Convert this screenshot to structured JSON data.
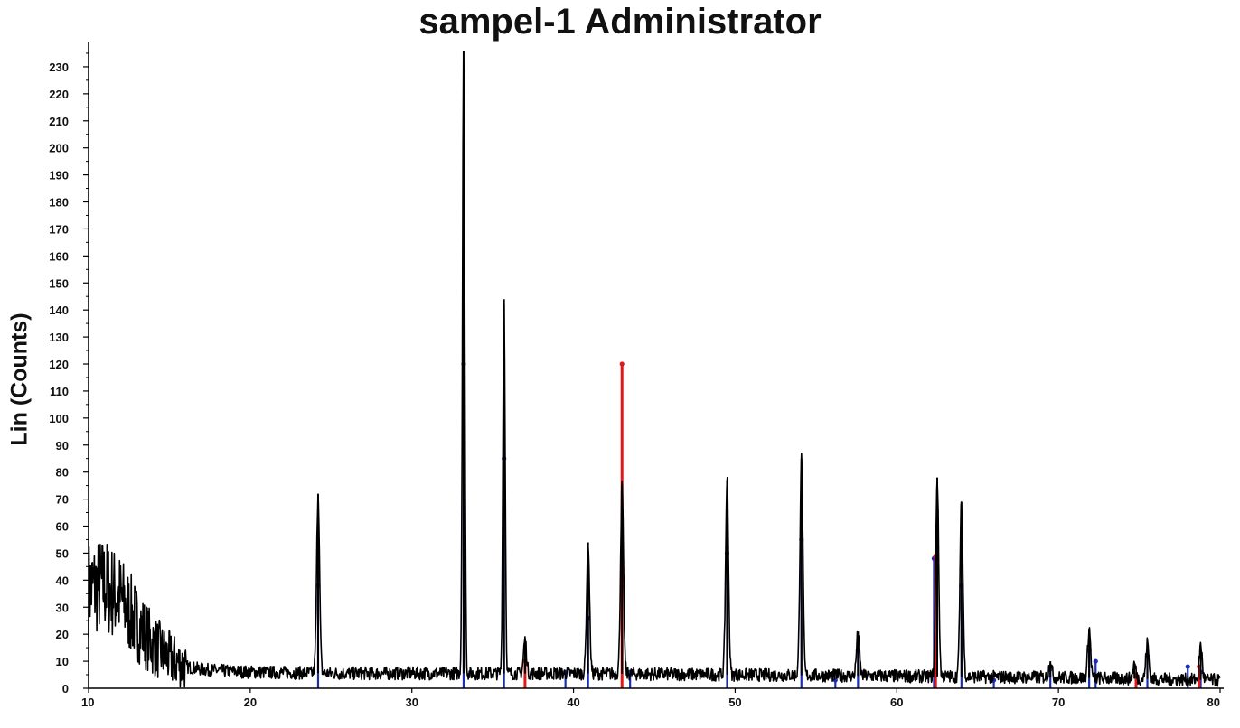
{
  "chart_data": {
    "type": "line",
    "title": "sampel-1 Administrator",
    "xlabel": "",
    "ylabel": "Lin (Counts)",
    "xlim": [
      10,
      80
    ],
    "ylim": [
      0,
      236
    ],
    "xticks": [
      10,
      20,
      30,
      40,
      50,
      60,
      70,
      80
    ],
    "yticks": [
      0,
      10,
      20,
      30,
      40,
      50,
      60,
      70,
      80,
      90,
      100,
      110,
      120,
      130,
      140,
      150,
      160,
      170,
      180,
      190,
      200,
      210,
      220,
      230
    ],
    "grid": false,
    "series": [
      {
        "color": "#000000",
        "baseline": [
          [
            10,
            37
          ],
          [
            11,
            38
          ],
          [
            12,
            33
          ],
          [
            13,
            24
          ],
          [
            14,
            16
          ],
          [
            15,
            11
          ],
          [
            16,
            8
          ],
          [
            17,
            7
          ],
          [
            18,
            6.5
          ],
          [
            20,
            6
          ],
          [
            25,
            5.5
          ],
          [
            30,
            5.5
          ],
          [
            40,
            5.5
          ],
          [
            50,
            5
          ],
          [
            60,
            4.5
          ],
          [
            70,
            4
          ],
          [
            80,
            3
          ]
        ],
        "peaks": [
          {
            "x": 24.2,
            "y": 72
          },
          {
            "x": 33.2,
            "y": 236
          },
          {
            "x": 35.7,
            "y": 144
          },
          {
            "x": 37.0,
            "y": 18
          },
          {
            "x": 40.9,
            "y": 54
          },
          {
            "x": 43.0,
            "y": 75
          },
          {
            "x": 49.5,
            "y": 77
          },
          {
            "x": 54.1,
            "y": 85
          },
          {
            "x": 57.6,
            "y": 21
          },
          {
            "x": 62.5,
            "y": 78
          },
          {
            "x": 64.0,
            "y": 69
          },
          {
            "x": 69.5,
            "y": 10
          },
          {
            "x": 71.9,
            "y": 22
          },
          {
            "x": 74.7,
            "y": 9
          },
          {
            "x": 75.5,
            "y": 17
          },
          {
            "x": 78.8,
            "y": 16
          }
        ]
      }
    ],
    "reference_lines": [
      {
        "color": "#1a2fb0",
        "x": [
          24.2,
          33.2,
          35.7,
          39.5,
          40.9,
          43.5,
          49.5,
          54.1,
          56.2,
          57.6,
          62.3,
          64.0,
          66.0,
          69.5,
          71.9,
          72.3,
          75.5,
          78.0,
          78.8
        ],
        "y": [
          38,
          120,
          85,
          6,
          26,
          6,
          50,
          55,
          3,
          14,
          48,
          38,
          3,
          7,
          14,
          10,
          12,
          8,
          6
        ]
      },
      {
        "color": "#e01818",
        "x": [
          37.0,
          43.0,
          62.4,
          74.8,
          78.7
        ],
        "y": [
          10,
          120,
          49,
          5,
          8
        ]
      }
    ]
  }
}
